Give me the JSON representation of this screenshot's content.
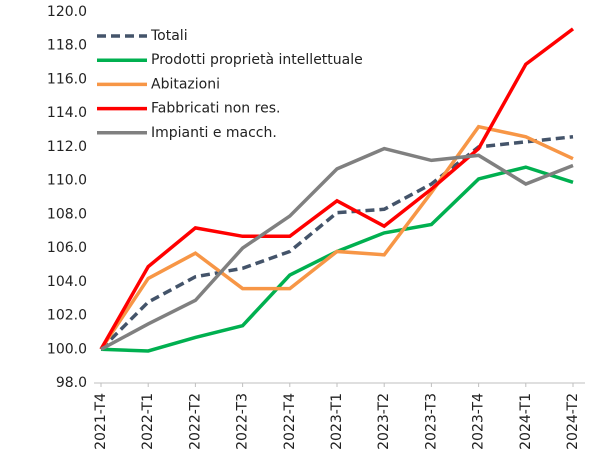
{
  "chart_data": {
    "type": "line",
    "categories": [
      "2021-T4",
      "2022-T1",
      "2022-T2",
      "2022-T3",
      "2022-T4",
      "2023-T1",
      "2023-T2",
      "2023-T3",
      "2023-T4",
      "2024-T1",
      "2024-T2"
    ],
    "series": [
      {
        "name": "Totali",
        "color": "#44546a",
        "line_style": "dashed",
        "values": [
          100,
          102.8,
          104.3,
          104.8,
          105.8,
          108.1,
          108.3,
          109.8,
          112.0,
          112.3,
          112.6
        ]
      },
      {
        "name": "Prodotti proprietà intellettuale",
        "color": "#00b050",
        "line_style": "solid",
        "values": [
          100,
          99.9,
          100.7,
          101.4,
          104.4,
          105.8,
          106.9,
          107.4,
          110.1,
          110.8,
          109.9
        ]
      },
      {
        "name": "Abitazioni",
        "color": "#f79646",
        "line_style": "solid",
        "values": [
          100,
          104.2,
          105.7,
          103.6,
          103.6,
          105.8,
          105.6,
          109.3,
          113.2,
          112.6,
          111.3
        ]
      },
      {
        "name": "Fabbricati non res.",
        "color": "#ff0000",
        "line_style": "solid",
        "values": [
          100,
          104.9,
          107.2,
          106.7,
          106.7,
          108.8,
          107.3,
          109.5,
          111.9,
          116.9,
          119.0
        ]
      },
      {
        "name": "Impianti e macch.",
        "color": "#808080",
        "line_style": "solid",
        "values": [
          100,
          101.5,
          102.9,
          106.0,
          107.9,
          110.7,
          111.9,
          111.2,
          111.5,
          109.8,
          110.9
        ]
      }
    ],
    "ylim": [
      98,
      120
    ],
    "yticks": [
      {
        "value": 98,
        "label": "98.0"
      },
      {
        "value": 100,
        "label": "100.0"
      },
      {
        "value": 102,
        "label": "102.0"
      },
      {
        "value": 104,
        "label": "104.0"
      },
      {
        "value": 106,
        "label": "106.0"
      },
      {
        "value": 108,
        "label": "108.0"
      },
      {
        "value": 110,
        "label": "110.0"
      },
      {
        "value": 112,
        "label": "112.0"
      },
      {
        "value": 114,
        "label": "114.0"
      },
      {
        "value": 116,
        "label": "116.0"
      },
      {
        "value": 118,
        "label": "118.0"
      },
      {
        "value": 120,
        "label": "120.0"
      }
    ],
    "grid": false,
    "legend": "upper left"
  }
}
